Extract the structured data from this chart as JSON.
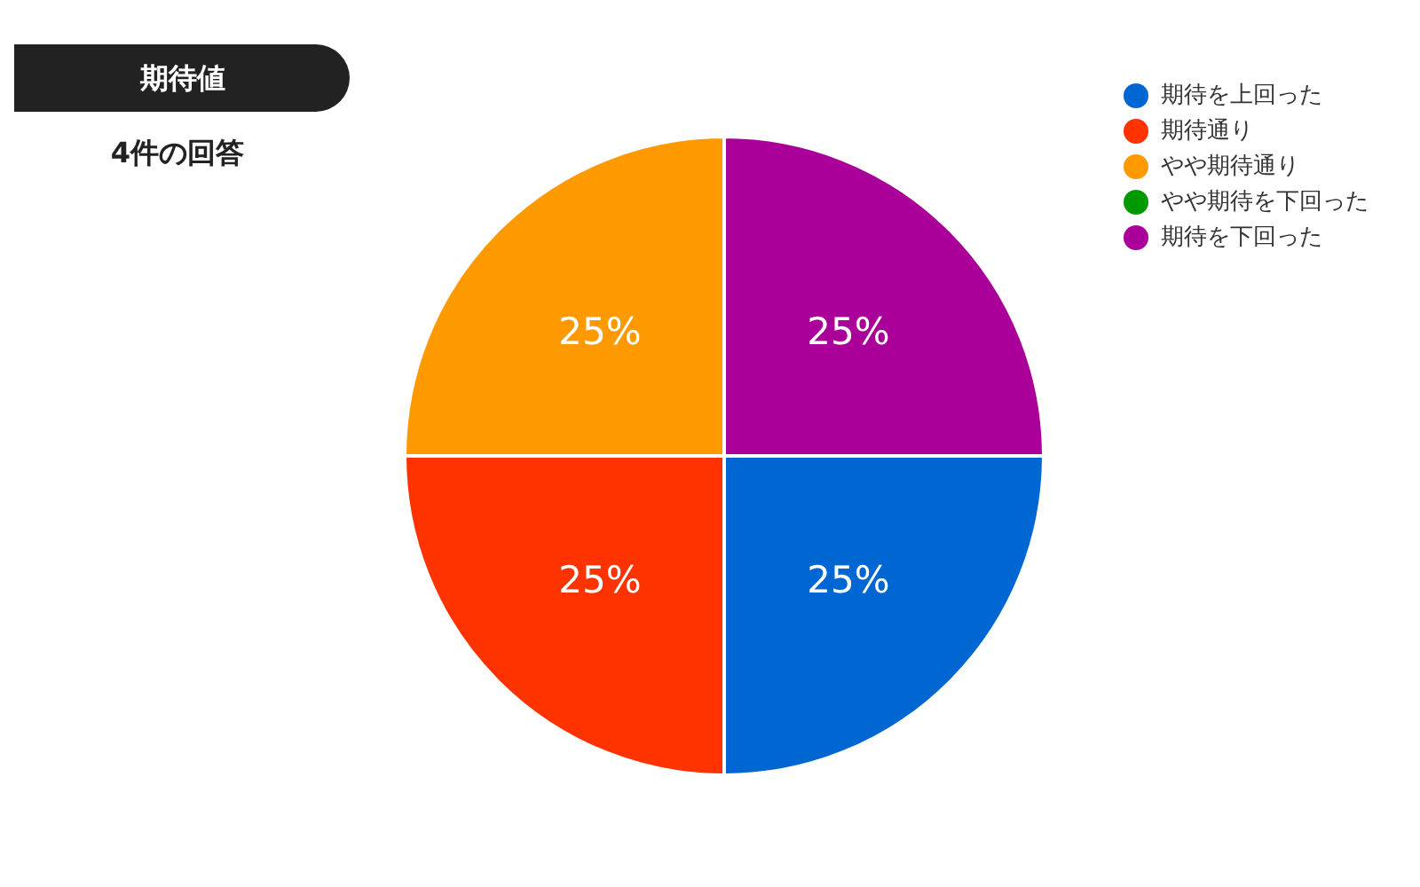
{
  "chart_data": {
    "type": "pie",
    "title": "期待値",
    "subtitle": "4件の回答",
    "categories": [
      "期待を上回った",
      "期待通り",
      "やや期待通り",
      "やや期待を下回った",
      "期待を下回った"
    ],
    "values": [
      25,
      25,
      25,
      0,
      25
    ],
    "colors": [
      "#0066d2",
      "#ff3300",
      "#ff9900",
      "#009900",
      "#aa0099"
    ],
    "value_labels": [
      "25%",
      "25%",
      "25%",
      null,
      "25%"
    ],
    "legend": "top right"
  }
}
